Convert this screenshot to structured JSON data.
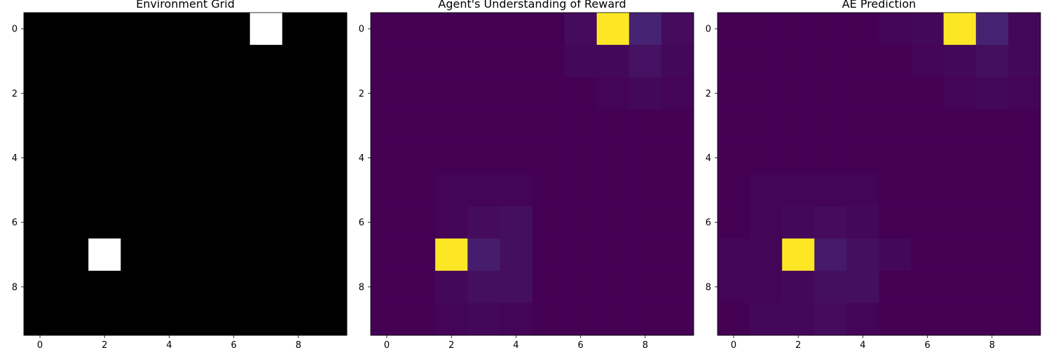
{
  "chart_data": [
    {
      "type": "heatmap",
      "title": "Environment Grid",
      "colormap": "gray",
      "vmin": 0,
      "vmax": 1,
      "x_ticks": [
        "0",
        "2",
        "4",
        "6",
        "8"
      ],
      "y_ticks": [
        "0",
        "2",
        "4",
        "6",
        "8"
      ],
      "xlim": [
        -0.5,
        9.5
      ],
      "ylim": [
        9.5,
        -0.5
      ],
      "rows": 10,
      "cols": 10,
      "values": [
        [
          0,
          0,
          0,
          0,
          0,
          0,
          0,
          1,
          0,
          0
        ],
        [
          0,
          0,
          0,
          0,
          0,
          0,
          0,
          0,
          0,
          0
        ],
        [
          0,
          0,
          0,
          0,
          0,
          0,
          0,
          0,
          0,
          0
        ],
        [
          0,
          0,
          0,
          0,
          0,
          0,
          0,
          0,
          0,
          0
        ],
        [
          0,
          0,
          0,
          0,
          0,
          0,
          0,
          0,
          0,
          0
        ],
        [
          0,
          0,
          0,
          0,
          0,
          0,
          0,
          0,
          0,
          0
        ],
        [
          0,
          0,
          0,
          0,
          0,
          0,
          0,
          0,
          0,
          0
        ],
        [
          0,
          0,
          1,
          0,
          0,
          0,
          0,
          0,
          0,
          0
        ],
        [
          0,
          0,
          0,
          0,
          0,
          0,
          0,
          0,
          0,
          0
        ],
        [
          0,
          0,
          0,
          0,
          0,
          0,
          0,
          0,
          0,
          0
        ]
      ]
    },
    {
      "type": "heatmap",
      "title": "Agent's Understanding of Reward",
      "colormap": "viridis",
      "vmin": 0,
      "vmax": 1,
      "x_ticks": [
        "0",
        "2",
        "4",
        "6",
        "8"
      ],
      "y_ticks": [
        "0",
        "2",
        "4",
        "6",
        "8"
      ],
      "xlim": [
        -0.5,
        9.5
      ],
      "ylim": [
        9.5,
        -0.5
      ],
      "rows": 10,
      "cols": 10,
      "values": [
        [
          0.0,
          0.0,
          0.0,
          0.0,
          0.0,
          0.0,
          0.03,
          1.0,
          0.1,
          0.03
        ],
        [
          0.0,
          0.0,
          0.0,
          0.0,
          0.0,
          0.0,
          0.02,
          0.02,
          0.05,
          0.02
        ],
        [
          0.0,
          0.0,
          0.0,
          0.0,
          0.0,
          0.0,
          0.0,
          0.01,
          0.02,
          0.01
        ],
        [
          0.0,
          0.0,
          0.0,
          0.0,
          0.0,
          0.0,
          0.0,
          0.0,
          0.0,
          0.0
        ],
        [
          0.0,
          0.0,
          0.0,
          0.0,
          0.0,
          0.0,
          0.0,
          0.0,
          0.0,
          0.0
        ],
        [
          0.0,
          0.0,
          0.01,
          0.01,
          0.01,
          0.0,
          0.0,
          0.0,
          0.0,
          0.0
        ],
        [
          0.0,
          0.0,
          0.01,
          0.03,
          0.04,
          0.0,
          0.0,
          0.0,
          0.0,
          0.0
        ],
        [
          0.0,
          0.0,
          1.0,
          0.08,
          0.04,
          0.0,
          0.0,
          0.0,
          0.0,
          0.0
        ],
        [
          0.0,
          0.0,
          0.02,
          0.04,
          0.04,
          0.0,
          0.0,
          0.0,
          0.0,
          0.0
        ],
        [
          0.0,
          0.0,
          0.01,
          0.02,
          0.01,
          0.0,
          0.0,
          0.0,
          0.0,
          0.0
        ]
      ]
    },
    {
      "type": "heatmap",
      "title": "AE Prediction",
      "colormap": "viridis",
      "vmin": 0,
      "vmax": 1,
      "x_ticks": [
        "0",
        "2",
        "4",
        "6",
        "8"
      ],
      "y_ticks": [
        "0",
        "2",
        "4",
        "6",
        "8"
      ],
      "xlim": [
        -0.5,
        9.5
      ],
      "ylim": [
        9.5,
        -0.5
      ],
      "rows": 10,
      "cols": 10,
      "values": [
        [
          0.0,
          0.0,
          0.0,
          0.0,
          0.0,
          0.01,
          0.02,
          1.0,
          0.1,
          0.02
        ],
        [
          0.0,
          0.0,
          0.0,
          0.0,
          0.0,
          0.0,
          0.01,
          0.02,
          0.04,
          0.02
        ],
        [
          0.0,
          0.0,
          0.0,
          0.0,
          0.0,
          0.0,
          0.0,
          0.01,
          0.02,
          0.01
        ],
        [
          0.0,
          0.0,
          0.0,
          0.0,
          0.0,
          0.0,
          0.0,
          0.0,
          0.0,
          0.0
        ],
        [
          0.0,
          0.0,
          0.0,
          0.0,
          0.0,
          0.0,
          0.0,
          0.0,
          0.0,
          0.0
        ],
        [
          0.0,
          0.01,
          0.01,
          0.01,
          0.01,
          0.0,
          0.0,
          0.0,
          0.0,
          0.0
        ],
        [
          0.0,
          0.01,
          0.02,
          0.03,
          0.02,
          0.0,
          0.0,
          0.0,
          0.0,
          0.0
        ],
        [
          0.01,
          0.01,
          1.0,
          0.07,
          0.04,
          0.02,
          0.0,
          0.0,
          0.0,
          0.0
        ],
        [
          0.01,
          0.01,
          0.02,
          0.04,
          0.04,
          0.0,
          0.0,
          0.0,
          0.0,
          0.0
        ],
        [
          0.0,
          0.02,
          0.02,
          0.03,
          0.01,
          0.0,
          0.0,
          0.0,
          0.0,
          0.0
        ]
      ]
    }
  ]
}
